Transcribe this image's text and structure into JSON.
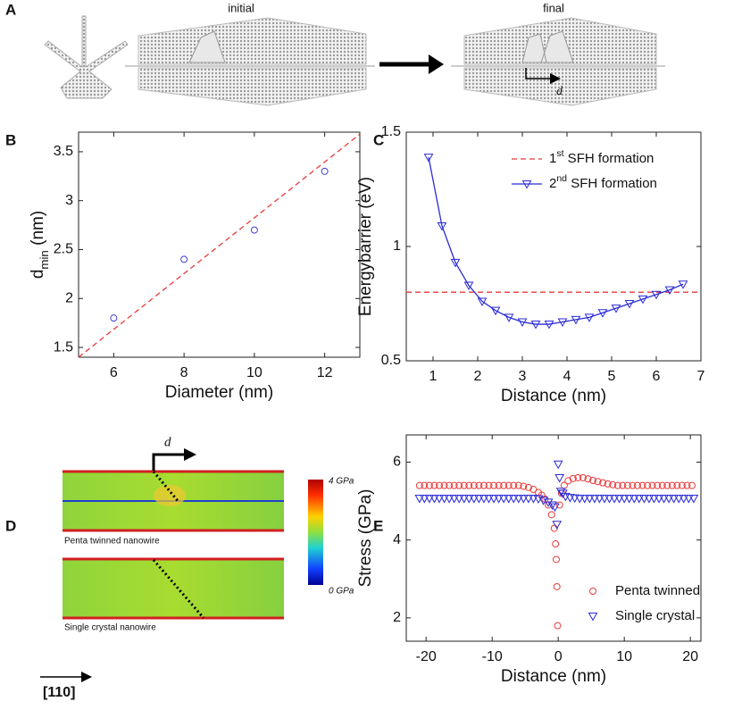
{
  "panel_labels": [
    "A",
    "B",
    "C",
    "D",
    "E"
  ],
  "panel_a": {
    "initial": "initial",
    "final": "final",
    "d": "d"
  },
  "panel_d": {
    "d": "d",
    "colorbar_max": "4 GPa",
    "colorbar_min": "0 GPa",
    "top_caption": "Penta twinned nanowire",
    "bottom_caption": "Single crystal nanowire",
    "direction": "[110]"
  },
  "chart_data": [
    {
      "type": "scatter",
      "xlabel": "Diameter (nm)",
      "ylabel": {
        "text": "d",
        "sub": "min",
        "rest": " (nm)"
      },
      "xlim": [
        5,
        13
      ],
      "xticks": [
        6,
        8,
        10,
        12
      ],
      "ylim": [
        1.4,
        3.7
      ],
      "yticks": [
        1.5,
        2,
        2.5,
        3,
        3.5
      ],
      "series": [
        {
          "x": [
            6,
            8,
            10,
            12
          ],
          "values": [
            1.8,
            2.4,
            2.7,
            3.3
          ],
          "color": "#4040d0",
          "marker": "circle"
        },
        {
          "x": [
            5,
            13
          ],
          "values": [
            1.4,
            3.68
          ],
          "color": "#e83a3a",
          "linestyle": "dashed"
        }
      ]
    },
    {
      "type": "line",
      "xlabel": "Distance (nm)",
      "ylabel": "Energybarrier (eV)",
      "xlim": [
        0.4,
        7
      ],
      "xticks": [
        1,
        2,
        3,
        4,
        5,
        6,
        7
      ],
      "ylim": [
        0.5,
        1.5
      ],
      "yticks": [
        0.5,
        1,
        1.5
      ],
      "legend": "upper right",
      "series": [
        {
          "name": {
            "text": "1",
            "sup": "st",
            "rest": " SFH formation"
          },
          "x": [
            0.4,
            7
          ],
          "values": [
            0.8,
            0.8
          ],
          "color": "#e83a3a",
          "linestyle": "dashed"
        },
        {
          "name": {
            "text": "2",
            "sup": "nd",
            "rest": " SFH formation"
          },
          "x": [
            0.9,
            1.2,
            1.5,
            1.8,
            2.1,
            2.4,
            2.7,
            3.0,
            3.3,
            3.6,
            3.9,
            4.2,
            4.5,
            4.8,
            5.1,
            5.4,
            5.7,
            6.0,
            6.3,
            6.6
          ],
          "values": [
            1.39,
            1.09,
            0.93,
            0.83,
            0.76,
            0.72,
            0.69,
            0.67,
            0.66,
            0.66,
            0.67,
            0.68,
            0.69,
            0.71,
            0.73,
            0.75,
            0.77,
            0.79,
            0.81,
            0.835
          ],
          "color": "#2a2ad8",
          "linestyle": "solid",
          "marker": "triangle-down"
        }
      ]
    },
    {
      "type": "scatter",
      "xlabel": "Distance (nm)",
      "ylabel": "Stress (GPa)",
      "xlim": [
        -23,
        21.6
      ],
      "xticks": [
        -20,
        -10,
        0,
        10,
        20
      ],
      "ylim": [
        1.4,
        6.7
      ],
      "yticks": [
        2,
        4,
        6
      ],
      "legend": "lower right",
      "series": [
        {
          "name": "Penta twinned",
          "color": "#e83a3a",
          "marker": "circle",
          "x": [
            -21,
            -20.25,
            -19.5,
            -18.75,
            -18,
            -17.25,
            -16.5,
            -15.75,
            -15,
            -14.25,
            -13.5,
            -12.75,
            -12,
            -11.25,
            -10.5,
            -9.75,
            -9,
            -8.25,
            -7.5,
            -6.75,
            -6,
            -5.25,
            -4.5,
            -3.75,
            -3,
            -2.5,
            -2,
            -1.5,
            -1,
            -0.6,
            -0.4,
            -0.3,
            -0.2,
            -0.1,
            0.2,
            0.5,
            0.9,
            1.5,
            2.25,
            3,
            3.75,
            4.5,
            5.25,
            6,
            6.75,
            7.5,
            8.25,
            9,
            9.75,
            10.5,
            11.25,
            12,
            12.75,
            13.5,
            14.25,
            15,
            15.75,
            16.5,
            17.25,
            18,
            18.75,
            19.5,
            20.25
          ],
          "values": [
            5.4,
            5.4,
            5.4,
            5.4,
            5.4,
            5.4,
            5.4,
            5.4,
            5.4,
            5.4,
            5.4,
            5.4,
            5.4,
            5.4,
            5.4,
            5.4,
            5.4,
            5.4,
            5.4,
            5.4,
            5.4,
            5.38,
            5.35,
            5.3,
            5.22,
            5.15,
            5.05,
            4.9,
            4.65,
            4.3,
            3.9,
            3.5,
            2.8,
            1.8,
            4.9,
            5.2,
            5.4,
            5.52,
            5.58,
            5.6,
            5.6,
            5.57,
            5.53,
            5.5,
            5.47,
            5.44,
            5.42,
            5.4,
            5.4,
            5.4,
            5.4,
            5.4,
            5.4,
            5.4,
            5.4,
            5.4,
            5.4,
            5.4,
            5.4,
            5.4,
            5.4,
            5.4,
            5.4
          ]
        },
        {
          "name": "Single crystal",
          "color": "#2a2ad8",
          "marker": "triangle-down",
          "x": [
            -21,
            -20.25,
            -19.5,
            -18.75,
            -18,
            -17.25,
            -16.5,
            -15.75,
            -15,
            -14.25,
            -13.5,
            -12.75,
            -12,
            -11.25,
            -10.5,
            -9.75,
            -9,
            -8.25,
            -7.5,
            -6.75,
            -6,
            -5.25,
            -4.5,
            -3.75,
            -3,
            -2.25,
            -1.5,
            -0.9,
            -0.5,
            -0.2,
            0,
            0.2,
            0.4,
            0.7,
            1.1,
            1.8,
            2.5,
            3.25,
            4,
            4.75,
            5.5,
            6.25,
            7,
            7.75,
            8.5,
            9.25,
            10,
            10.75,
            11.5,
            12.25,
            13,
            13.75,
            14.5,
            15.25,
            16,
            16.75,
            17.5,
            18.25,
            19,
            19.75,
            20.5
          ],
          "values": [
            5.07,
            5.07,
            5.07,
            5.07,
            5.07,
            5.07,
            5.07,
            5.07,
            5.07,
            5.07,
            5.07,
            5.07,
            5.07,
            5.07,
            5.07,
            5.07,
            5.07,
            5.07,
            5.07,
            5.07,
            5.07,
            5.07,
            5.07,
            5.07,
            5.06,
            5.02,
            4.97,
            4.9,
            4.85,
            4.4,
            5.95,
            5.6,
            5.25,
            5.2,
            5.12,
            5.09,
            5.08,
            5.07,
            5.07,
            5.07,
            5.07,
            5.07,
            5.07,
            5.07,
            5.07,
            5.07,
            5.07,
            5.07,
            5.07,
            5.07,
            5.07,
            5.07,
            5.07,
            5.07,
            5.07,
            5.07,
            5.07,
            5.07,
            5.07,
            5.07,
            5.07
          ]
        }
      ]
    }
  ]
}
